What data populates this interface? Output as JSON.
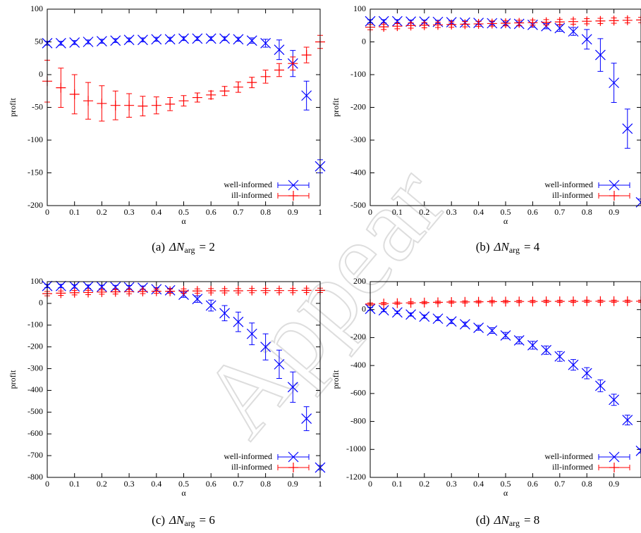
{
  "watermark": "Appear",
  "chart_data": [
    {
      "type": "errorbar",
      "caption": {
        "label": "(a)",
        "symbol": "ΔN",
        "subscript": "arg",
        "equals": "= 2"
      },
      "xlabel": "α",
      "ylabel": "profit",
      "xlim": [
        0,
        1
      ],
      "ylim": [
        -200,
        100
      ],
      "xticks": [
        0,
        0.1,
        0.2,
        0.3,
        0.4,
        0.5,
        0.6,
        0.7,
        0.8,
        0.9,
        1
      ],
      "yticks": [
        100,
        50,
        0,
        -50,
        -100,
        -150,
        -200
      ],
      "x": [
        0,
        0.05,
        0.1,
        0.15,
        0.2,
        0.25,
        0.3,
        0.35,
        0.4,
        0.45,
        0.5,
        0.55,
        0.6,
        0.65,
        0.7,
        0.75,
        0.8,
        0.85,
        0.9,
        0.95,
        1
      ],
      "legend": "lower right",
      "series": [
        {
          "name": "well-informed",
          "color": "#0000ff",
          "marker": "x",
          "values": [
            48,
            48,
            49,
            50,
            51,
            52,
            53,
            53,
            54,
            54,
            55,
            55,
            55,
            55,
            54,
            52,
            48,
            38,
            17,
            -32,
            -140
          ],
          "errors": [
            3,
            3,
            3,
            3,
            3,
            3,
            3,
            3,
            3,
            3,
            3,
            3,
            3,
            3,
            3,
            4,
            6,
            15,
            20,
            22,
            10
          ]
        },
        {
          "name": "ill-informed",
          "color": "#ff0000",
          "marker": "+",
          "values": [
            -10,
            -20,
            -30,
            -40,
            -44,
            -47,
            -47,
            -48,
            -47,
            -45,
            -40,
            -35,
            -31,
            -25,
            -19,
            -12,
            -3,
            7,
            17,
            30,
            50
          ],
          "errors": [
            32,
            30,
            30,
            28,
            27,
            22,
            18,
            15,
            13,
            10,
            8,
            7,
            6,
            7,
            8,
            8,
            10,
            10,
            10,
            12,
            10
          ]
        }
      ]
    },
    {
      "type": "errorbar",
      "caption": {
        "label": "(b)",
        "symbol": "ΔN",
        "subscript": "arg",
        "equals": "= 4"
      },
      "xlabel": "α",
      "ylabel": "profit",
      "xlim": [
        0,
        1
      ],
      "ylim": [
        -500,
        100
      ],
      "xticks": [
        0,
        0.1,
        0.2,
        0.3,
        0.4,
        0.5,
        0.6,
        0.7,
        0.8,
        0.9
      ],
      "yticks": [
        100,
        0,
        -100,
        -200,
        -300,
        -400,
        -500
      ],
      "x": [
        0,
        0.05,
        0.1,
        0.15,
        0.2,
        0.25,
        0.3,
        0.35,
        0.4,
        0.45,
        0.5,
        0.55,
        0.6,
        0.65,
        0.7,
        0.75,
        0.8,
        0.85,
        0.9,
        0.95,
        1
      ],
      "legend": "lower right",
      "series": [
        {
          "name": "well-informed",
          "color": "#0000ff",
          "marker": "x",
          "values": [
            63,
            63,
            63,
            62,
            62,
            61,
            60,
            59,
            58,
            57,
            56,
            55,
            52,
            48,
            42,
            32,
            8,
            -40,
            -125,
            -265,
            -490
          ],
          "errors": [
            5,
            5,
            5,
            5,
            5,
            5,
            5,
            5,
            5,
            5,
            5,
            6,
            7,
            8,
            10,
            12,
            30,
            50,
            60,
            60,
            10
          ]
        },
        {
          "name": "ill-informed",
          "color": "#ff0000",
          "marker": "+",
          "values": [
            45,
            46,
            48,
            50,
            51,
            52,
            53,
            54,
            55,
            56,
            57,
            58,
            59,
            60,
            61,
            62,
            63,
            64,
            65,
            66,
            67
          ],
          "errors": [
            8,
            8,
            8,
            8,
            8,
            8,
            8,
            8,
            8,
            8,
            8,
            8,
            8,
            8,
            8,
            8,
            8,
            8,
            8,
            8,
            8
          ]
        }
      ]
    },
    {
      "type": "errorbar",
      "caption": {
        "label": "(c)",
        "symbol": "ΔN",
        "subscript": "arg",
        "equals": "= 6"
      },
      "xlabel": "α",
      "ylabel": "profit",
      "xlim": [
        0,
        1
      ],
      "ylim": [
        -800,
        100
      ],
      "xticks": [
        0,
        0.1,
        0.2,
        0.3,
        0.4,
        0.5,
        0.6,
        0.7,
        0.8,
        0.9,
        1
      ],
      "yticks": [
        100,
        0,
        -100,
        -200,
        -300,
        -400,
        -500,
        -600,
        -700,
        -800
      ],
      "x": [
        0,
        0.05,
        0.1,
        0.15,
        0.2,
        0.25,
        0.3,
        0.35,
        0.4,
        0.45,
        0.5,
        0.55,
        0.6,
        0.65,
        0.7,
        0.75,
        0.8,
        0.85,
        0.9,
        0.95,
        1
      ],
      "legend": "lower right",
      "series": [
        {
          "name": "well-informed",
          "color": "#0000ff",
          "marker": "x",
          "values": [
            80,
            80,
            78,
            77,
            76,
            75,
            74,
            72,
            65,
            60,
            40,
            20,
            -10,
            -45,
            -85,
            -140,
            -200,
            -280,
            -385,
            -530,
            -755
          ],
          "errors": [
            8,
            8,
            8,
            8,
            8,
            8,
            8,
            8,
            8,
            9,
            12,
            15,
            25,
            35,
            45,
            50,
            60,
            65,
            70,
            55,
            10
          ]
        },
        {
          "name": "ill-informed",
          "color": "#ff0000",
          "marker": "+",
          "values": [
            45,
            47,
            49,
            50,
            52,
            53,
            54,
            55,
            56,
            56,
            57,
            57,
            58,
            58,
            58,
            59,
            59,
            59,
            59,
            60,
            60
          ],
          "errors": [
            10,
            10,
            10,
            10,
            10,
            10,
            10,
            10,
            10,
            10,
            10,
            10,
            10,
            10,
            10,
            10,
            10,
            10,
            10,
            10,
            10
          ]
        }
      ]
    },
    {
      "type": "errorbar",
      "caption": {
        "label": "(d)",
        "symbol": "ΔN",
        "subscript": "arg",
        "equals": "= 8"
      },
      "xlabel": "α",
      "ylabel": "profit",
      "xlim": [
        0,
        1
      ],
      "ylim": [
        -1200,
        200
      ],
      "xticks": [
        0,
        0.1,
        0.2,
        0.3,
        0.4,
        0.5,
        0.6,
        0.7,
        0.8,
        0.9
      ],
      "yticks": [
        200,
        0,
        -200,
        -400,
        -600,
        -800,
        -1000,
        -1200
      ],
      "x": [
        0,
        0.05,
        0.1,
        0.15,
        0.2,
        0.25,
        0.3,
        0.35,
        0.4,
        0.45,
        0.5,
        0.55,
        0.6,
        0.65,
        0.7,
        0.75,
        0.8,
        0.85,
        0.9,
        0.95,
        1
      ],
      "legend": "lower right",
      "series": [
        {
          "name": "well-informed",
          "color": "#0000ff",
          "marker": "x",
          "values": [
            5,
            -5,
            -20,
            -35,
            -50,
            -65,
            -85,
            -105,
            -130,
            -150,
            -185,
            -220,
            -255,
            -290,
            -335,
            -395,
            -455,
            -545,
            -645,
            -790,
            -1010
          ],
          "errors": [
            10,
            10,
            10,
            12,
            12,
            14,
            15,
            16,
            18,
            20,
            22,
            25,
            28,
            30,
            35,
            38,
            40,
            42,
            40,
            35,
            15
          ]
        },
        {
          "name": "ill-informed",
          "color": "#ff0000",
          "marker": "+",
          "values": [
            40,
            43,
            46,
            48,
            50,
            52,
            54,
            55,
            56,
            57,
            57,
            58,
            58,
            59,
            59,
            59,
            60,
            60,
            60,
            60,
            60
          ],
          "errors": [
            8,
            8,
            8,
            8,
            8,
            8,
            8,
            8,
            8,
            8,
            8,
            8,
            8,
            8,
            8,
            8,
            8,
            8,
            8,
            8,
            8
          ]
        }
      ]
    }
  ]
}
